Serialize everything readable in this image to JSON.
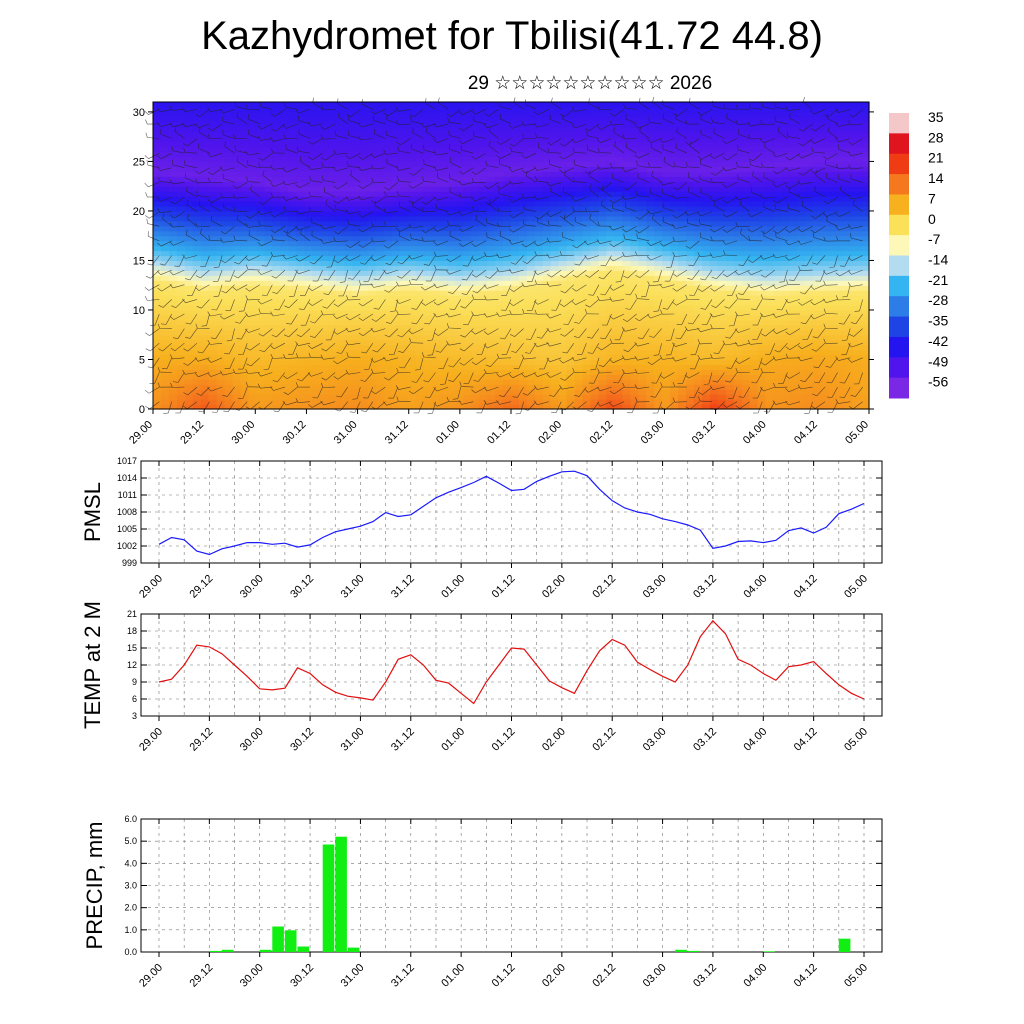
{
  "header": {
    "title": "Kazhydromet for Tbilisi(41.72 44.8)",
    "subtitle": "29 ☆☆☆☆☆☆☆☆☆☆ 2026"
  },
  "time_labels": [
    "29.00",
    "29.12",
    "30.00",
    "30.12",
    "31.00",
    "31.12",
    "01.00",
    "01.12",
    "02.00",
    "02.12",
    "03.00",
    "03.12",
    "04.00",
    "04.12",
    "05.00"
  ],
  "colors": {
    "pmsl_line": "#1a1aff",
    "temp_line": "#e01010",
    "precip_bar": "#11ee11",
    "frame": "#000000"
  },
  "chart_data": [
    {
      "type": "heatmap",
      "name": "cross-section",
      "x_labels": [
        "29.00",
        "29.12",
        "30.00",
        "30.12",
        "31.00",
        "31.12",
        "01.00",
        "01.12",
        "02.00",
        "02.12",
        "03.00",
        "03.12",
        "04.00",
        "04.12",
        "05.00"
      ],
      "y_ticks": [
        0,
        5,
        10,
        15,
        20,
        25,
        30
      ],
      "ylim": [
        0,
        31
      ],
      "colorbar_labels": [
        "35",
        "28",
        "21",
        "14",
        "7",
        "0",
        "-7",
        "-14",
        "-21",
        "-28",
        "-35",
        "-42",
        "-49",
        "-56"
      ],
      "colorbar_range": [
        -63,
        42
      ],
      "colorbar_colors": [
        "#f4c8c8",
        "#e0141e",
        "#f03c14",
        "#f5781e",
        "#f7b01e",
        "#fbe05a",
        "#fdf8b8",
        "#b4dcf0",
        "#34b4f0",
        "#2c7de8",
        "#1e44e6",
        "#2414f0",
        "#5014ec",
        "#7a28e6"
      ],
      "anchor_hours": [
        0,
        12,
        24,
        36,
        48,
        60,
        72,
        84,
        96,
        108,
        120,
        132,
        144,
        156,
        168
      ],
      "temp_surface": [
        14,
        22,
        13,
        14,
        15,
        12,
        14,
        20,
        13,
        24,
        13,
        26,
        14,
        15,
        12
      ],
      "temp_mid": [
        7,
        7,
        5,
        6,
        7,
        6,
        5,
        4,
        3,
        6,
        6,
        5,
        7,
        8,
        7
      ],
      "layer_height_km": [
        14,
        13,
        13.5,
        13,
        12.5,
        13,
        12.5,
        13,
        14,
        15,
        14,
        13,
        12.5,
        12.8,
        13
      ],
      "cold_core_km": [
        24,
        23.5,
        23,
        22,
        22,
        22.5,
        23,
        24,
        24.5,
        25,
        24,
        24,
        24.5,
        25,
        25
      ]
    },
    {
      "type": "line",
      "name": "PMSL",
      "ylabel": "PMSL",
      "ylim": [
        999,
        1017
      ],
      "y_ticks": [
        999,
        1002,
        1005,
        1008,
        1011,
        1014,
        1017
      ],
      "x_labels": [
        "29.00",
        "29.12",
        "30.00",
        "30.12",
        "31.00",
        "31.12",
        "01.00",
        "01.12",
        "02.00",
        "02.12",
        "03.00",
        "03.12",
        "04.00",
        "04.12",
        "05.00"
      ],
      "x_hours": [
        0,
        3,
        6,
        9,
        12,
        15,
        18,
        21,
        24,
        27,
        30,
        33,
        36,
        39,
        42,
        45,
        48,
        51,
        54,
        57,
        60,
        63,
        66,
        69,
        72,
        75,
        78,
        81,
        84,
        87,
        90,
        93,
        96,
        99,
        102,
        105,
        108,
        111,
        114,
        117,
        120,
        123,
        126,
        129,
        132,
        135,
        138,
        141,
        144,
        147,
        150,
        153,
        156,
        159,
        162,
        165,
        168
      ],
      "values": [
        1002.3,
        1003.5,
        1003.1,
        1001.1,
        1000.5,
        1001.5,
        1002.0,
        1002.6,
        1002.6,
        1002.3,
        1002.5,
        1001.8,
        1002.2,
        1003.5,
        1004.5,
        1005.0,
        1005.5,
        1006.3,
        1007.9,
        1007.2,
        1007.5,
        1009.0,
        1010.5,
        1011.5,
        1012.3,
        1013.2,
        1014.3,
        1013.1,
        1011.8,
        1012.0,
        1013.4,
        1014.3,
        1015.1,
        1015.2,
        1014.4,
        1012.0,
        1010.0,
        1008.7,
        1008.0,
        1007.6,
        1006.8,
        1006.3,
        1005.7,
        1004.8,
        1001.6,
        1002.0,
        1002.8,
        1002.9,
        1002.6,
        1003.0,
        1004.7,
        1005.2,
        1004.3,
        1005.3,
        1007.7,
        1008.5,
        1009.5
      ]
    },
    {
      "type": "line",
      "name": "TEMP at 2 M",
      "ylabel": "TEMP at 2 M",
      "ylim": [
        3,
        21
      ],
      "y_ticks": [
        3,
        6,
        9,
        12,
        15,
        18,
        21
      ],
      "x_labels": [
        "29.00",
        "29.12",
        "30.00",
        "30.12",
        "31.00",
        "31.12",
        "01.00",
        "01.12",
        "02.00",
        "02.12",
        "03.00",
        "03.12",
        "04.00",
        "04.12",
        "05.00"
      ],
      "x_hours": [
        0,
        3,
        6,
        9,
        12,
        15,
        18,
        21,
        24,
        27,
        30,
        33,
        36,
        39,
        42,
        45,
        48,
        51,
        54,
        57,
        60,
        63,
        66,
        69,
        72,
        75,
        78,
        81,
        84,
        87,
        90,
        93,
        96,
        99,
        102,
        105,
        108,
        111,
        114,
        117,
        120,
        123,
        126,
        129,
        132,
        135,
        138,
        141,
        144,
        147,
        150,
        153,
        156,
        159,
        162,
        165,
        168
      ],
      "values": [
        9.0,
        9.5,
        12.0,
        15.5,
        15.2,
        14.0,
        12.0,
        10.0,
        7.8,
        7.6,
        7.9,
        11.5,
        10.5,
        8.5,
        7.2,
        6.5,
        6.2,
        5.8,
        9.0,
        13.0,
        13.8,
        12.0,
        9.3,
        8.8,
        7.0,
        5.2,
        9.0,
        12.0,
        15.0,
        14.8,
        12.0,
        9.2,
        8.0,
        7.0,
        11.0,
        14.5,
        16.5,
        15.5,
        12.5,
        11.2,
        10.0,
        9.0,
        12.0,
        17.0,
        19.8,
        17.5,
        13.0,
        12.0,
        10.5,
        9.3,
        11.7,
        12.0,
        12.6,
        10.5,
        8.5,
        7.0,
        6.0
      ]
    },
    {
      "type": "bar",
      "name": "PRECIP, mm",
      "ylabel": "PRECIP, mm",
      "ylim": [
        0,
        6
      ],
      "y_tick_labels": [
        "0.0",
        "1.0",
        "2.0",
        "3.0",
        "4.0",
        "5.0",
        "6.0"
      ],
      "x_labels": [
        "29.00",
        "29.12",
        "30.00",
        "30.12",
        "31.00",
        "31.12",
        "01.00",
        "01.12",
        "02.00",
        "02.12",
        "03.00",
        "03.12",
        "04.00",
        "04.12",
        "05.00"
      ],
      "x_hours": [
        0,
        3,
        6,
        9,
        12,
        15,
        18,
        21,
        24,
        27,
        30,
        33,
        36,
        39,
        42,
        45,
        48,
        51,
        54,
        57,
        60,
        63,
        66,
        69,
        72,
        75,
        78,
        81,
        84,
        87,
        90,
        93,
        96,
        99,
        102,
        105,
        108,
        111,
        114,
        117,
        120,
        123,
        126,
        129,
        132,
        135,
        138,
        141,
        144,
        147,
        150,
        153,
        156,
        159,
        162,
        165
      ],
      "values": [
        0,
        0,
        0,
        0,
        0.05,
        0.1,
        0,
        0,
        0.1,
        1.15,
        0.98,
        0.25,
        0,
        4.85,
        5.2,
        0.2,
        0,
        0,
        0,
        0,
        0,
        0,
        0,
        0,
        0,
        0,
        0,
        0,
        0,
        0,
        0,
        0,
        0,
        0,
        0,
        0,
        0,
        0,
        0,
        0,
        0,
        0.1,
        0.05,
        0,
        0,
        0,
        0,
        0,
        0.03,
        0,
        0,
        0,
        0,
        0,
        0.6,
        0
      ]
    }
  ]
}
